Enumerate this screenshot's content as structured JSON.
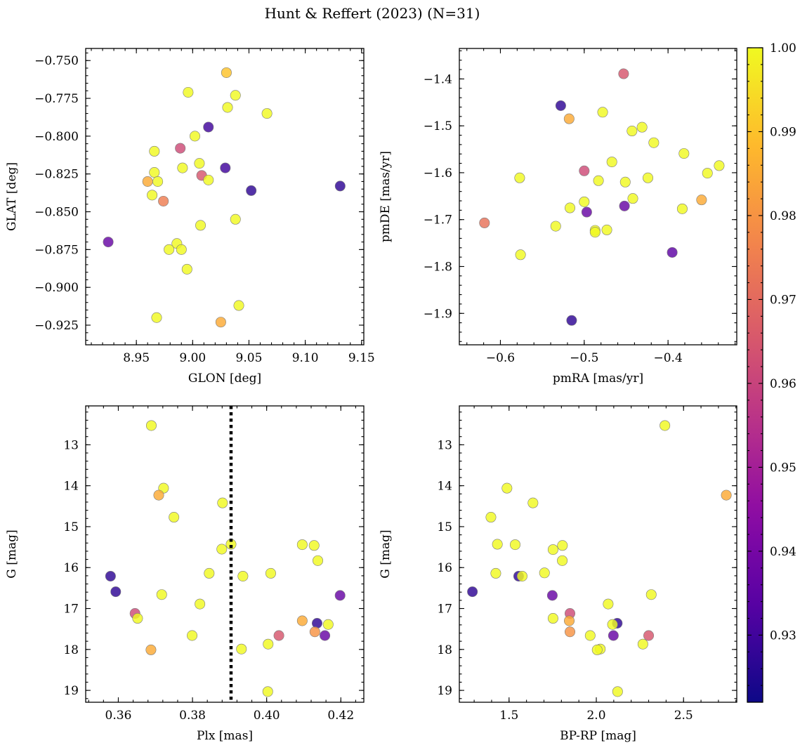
{
  "title": "Hunt & Reffert (2023) (N=31)",
  "chart_data": [
    {
      "type": "scatter",
      "panel": "top-left",
      "xlabel": "GLON [deg]",
      "ylabel": "GLAT [deg]",
      "xlim": [
        8.905,
        9.152
      ],
      "ylim": [
        -0.938,
        -0.742
      ],
      "xticks": [
        8.95,
        9.0,
        9.05,
        9.1,
        9.15
      ],
      "xtick_labels": [
        "8.95",
        "9.00",
        "9.05",
        "9.10",
        "9.15"
      ],
      "yticks": [
        -0.75,
        -0.775,
        -0.8,
        -0.825,
        -0.85,
        -0.875,
        -0.9,
        -0.925
      ],
      "ytick_labels": [
        "−0.750",
        "−0.775",
        "−0.800",
        "−0.825",
        "−0.850",
        "−0.875",
        "−0.900",
        "−0.925"
      ],
      "points": [
        {
          "x": 9.03,
          "y": -0.758,
          "c": 0.99
        },
        {
          "x": 8.996,
          "y": -0.771,
          "c": 1.0
        },
        {
          "x": 9.038,
          "y": -0.773,
          "c": 1.0
        },
        {
          "x": 9.031,
          "y": -0.781,
          "c": 1.0
        },
        {
          "x": 9.066,
          "y": -0.785,
          "c": 1.0
        },
        {
          "x": 9.014,
          "y": -0.794,
          "c": 0.93
        },
        {
          "x": 9.002,
          "y": -0.8,
          "c": 1.0
        },
        {
          "x": 8.989,
          "y": -0.808,
          "c": 0.962
        },
        {
          "x": 8.966,
          "y": -0.81,
          "c": 1.0
        },
        {
          "x": 9.006,
          "y": -0.818,
          "c": 1.0
        },
        {
          "x": 8.991,
          "y": -0.821,
          "c": 1.0
        },
        {
          "x": 9.029,
          "y": -0.821,
          "c": 0.93
        },
        {
          "x": 8.966,
          "y": -0.824,
          "c": 1.0
        },
        {
          "x": 9.008,
          "y": -0.826,
          "c": 0.965
        },
        {
          "x": 8.96,
          "y": -0.83,
          "c": 0.985
        },
        {
          "x": 8.969,
          "y": -0.83,
          "c": 1.0
        },
        {
          "x": 9.014,
          "y": -0.829,
          "c": 1.0
        },
        {
          "x": 9.052,
          "y": -0.836,
          "c": 0.927
        },
        {
          "x": 9.131,
          "y": -0.833,
          "c": 0.927
        },
        {
          "x": 8.964,
          "y": -0.839,
          "c": 1.0
        },
        {
          "x": 8.974,
          "y": -0.843,
          "c": 0.975
        },
        {
          "x": 9.038,
          "y": -0.855,
          "c": 1.0
        },
        {
          "x": 9.007,
          "y": -0.859,
          "c": 1.0
        },
        {
          "x": 8.925,
          "y": -0.87,
          "c": 0.937
        },
        {
          "x": 8.986,
          "y": -0.871,
          "c": 1.0
        },
        {
          "x": 8.979,
          "y": -0.875,
          "c": 1.0
        },
        {
          "x": 8.99,
          "y": -0.875,
          "c": 1.0
        },
        {
          "x": 8.995,
          "y": -0.888,
          "c": 1.0
        },
        {
          "x": 9.041,
          "y": -0.912,
          "c": 1.0
        },
        {
          "x": 8.968,
          "y": -0.92,
          "c": 1.0
        },
        {
          "x": 9.025,
          "y": -0.923,
          "c": 0.985
        }
      ]
    },
    {
      "type": "scatter",
      "panel": "top-right",
      "xlabel": "pmRA [mas/yr]",
      "ylabel": "pmDE [mas/yr]",
      "xlim": [
        -0.649,
        -0.318
      ],
      "ylim": [
        -1.967,
        -1.335
      ],
      "xticks": [
        -0.6,
        -0.5,
        -0.4
      ],
      "xtick_labels": [
        "−0.6",
        "−0.5",
        "−0.4"
      ],
      "yticks": [
        -1.4,
        -1.5,
        -1.6,
        -1.7,
        -1.8,
        -1.9
      ],
      "ytick_labels": [
        "−1.4",
        "−1.5",
        "−1.6",
        "−1.7",
        "−1.8",
        "−1.9"
      ],
      "points": [
        {
          "x": -0.453,
          "y": -1.389,
          "c": 0.965
        },
        {
          "x": -0.528,
          "y": -1.457,
          "c": 0.927
        },
        {
          "x": -0.518,
          "y": -1.485,
          "c": 0.985
        },
        {
          "x": -0.478,
          "y": -1.471,
          "c": 1.0
        },
        {
          "x": -0.443,
          "y": -1.511,
          "c": 1.0
        },
        {
          "x": -0.431,
          "y": -1.503,
          "c": 1.0
        },
        {
          "x": -0.417,
          "y": -1.536,
          "c": 1.0
        },
        {
          "x": -0.381,
          "y": -1.559,
          "c": 1.0
        },
        {
          "x": -0.339,
          "y": -1.585,
          "c": 1.0
        },
        {
          "x": -0.467,
          "y": -1.577,
          "c": 1.0
        },
        {
          "x": -0.5,
          "y": -1.596,
          "c": 0.962
        },
        {
          "x": -0.353,
          "y": -1.601,
          "c": 1.0
        },
        {
          "x": -0.424,
          "y": -1.611,
          "c": 1.0
        },
        {
          "x": -0.577,
          "y": -1.611,
          "c": 1.0
        },
        {
          "x": -0.483,
          "y": -1.617,
          "c": 1.0
        },
        {
          "x": -0.451,
          "y": -1.62,
          "c": 1.0
        },
        {
          "x": -0.442,
          "y": -1.655,
          "c": 1.0
        },
        {
          "x": -0.36,
          "y": -1.658,
          "c": 0.985
        },
        {
          "x": -0.5,
          "y": -1.662,
          "c": 1.0
        },
        {
          "x": -0.452,
          "y": -1.671,
          "c": 0.937
        },
        {
          "x": -0.517,
          "y": -1.675,
          "c": 1.0
        },
        {
          "x": -0.383,
          "y": -1.677,
          "c": 1.0
        },
        {
          "x": -0.497,
          "y": -1.684,
          "c": 0.937
        },
        {
          "x": -0.619,
          "y": -1.707,
          "c": 0.972
        },
        {
          "x": -0.534,
          "y": -1.714,
          "c": 1.0
        },
        {
          "x": -0.487,
          "y": -1.723,
          "c": 1.0
        },
        {
          "x": -0.473,
          "y": -1.722,
          "c": 1.0
        },
        {
          "x": -0.487,
          "y": -1.727,
          "c": 1.0
        },
        {
          "x": -0.395,
          "y": -1.77,
          "c": 0.935
        },
        {
          "x": -0.576,
          "y": -1.775,
          "c": 1.0
        },
        {
          "x": -0.515,
          "y": -1.915,
          "c": 0.927
        }
      ]
    },
    {
      "type": "scatter",
      "panel": "bottom-left",
      "xlabel": "Plx [mas]",
      "ylabel": "G [mag]",
      "xlim": [
        0.3512,
        0.4262
      ],
      "ylim": [
        19.29,
        12.05
      ],
      "y_inverted": true,
      "vline": 0.3904,
      "xticks": [
        0.36,
        0.38,
        0.4,
        0.42
      ],
      "xtick_labels": [
        "0.36",
        "0.38",
        "0.40",
        "0.42"
      ],
      "yticks": [
        13,
        14,
        15,
        16,
        17,
        18,
        19
      ],
      "ytick_labels": [
        "13",
        "14",
        "15",
        "16",
        "17",
        "18",
        "19"
      ],
      "points": [
        {
          "x": 0.3689,
          "y": 12.53,
          "c": 1.0
        },
        {
          "x": 0.3722,
          "y": 14.06,
          "c": 1.0
        },
        {
          "x": 0.3709,
          "y": 14.23,
          "c": 0.985
        },
        {
          "x": 0.3881,
          "y": 14.42,
          "c": 1.0
        },
        {
          "x": 0.375,
          "y": 14.77,
          "c": 1.0
        },
        {
          "x": 0.3879,
          "y": 15.55,
          "c": 1.0
        },
        {
          "x": 0.3904,
          "y": 15.43,
          "c": 1.0
        },
        {
          "x": 0.4096,
          "y": 15.44,
          "c": 1.0
        },
        {
          "x": 0.4128,
          "y": 15.46,
          "c": 1.0
        },
        {
          "x": 0.4138,
          "y": 15.83,
          "c": 1.0
        },
        {
          "x": 0.3845,
          "y": 16.14,
          "c": 1.0
        },
        {
          "x": 0.3936,
          "y": 16.21,
          "c": 1.0
        },
        {
          "x": 0.4011,
          "y": 16.14,
          "c": 1.0
        },
        {
          "x": 0.3579,
          "y": 16.21,
          "c": 0.927
        },
        {
          "x": 0.3593,
          "y": 16.59,
          "c": 0.927
        },
        {
          "x": 0.3717,
          "y": 16.66,
          "c": 1.0
        },
        {
          "x": 0.4198,
          "y": 16.68,
          "c": 0.937
        },
        {
          "x": 0.382,
          "y": 16.89,
          "c": 1.0
        },
        {
          "x": 0.3645,
          "y": 17.12,
          "c": 0.962
        },
        {
          "x": 0.3652,
          "y": 17.24,
          "c": 1.0
        },
        {
          "x": 0.4096,
          "y": 17.3,
          "c": 0.985
        },
        {
          "x": 0.4136,
          "y": 17.36,
          "c": 0.927
        },
        {
          "x": 0.4166,
          "y": 17.39,
          "c": 1.0
        },
        {
          "x": 0.413,
          "y": 17.57,
          "c": 0.98
        },
        {
          "x": 0.4157,
          "y": 17.66,
          "c": 0.937
        },
        {
          "x": 0.4033,
          "y": 17.66,
          "c": 0.965
        },
        {
          "x": 0.3799,
          "y": 17.66,
          "c": 1.0
        },
        {
          "x": 0.4004,
          "y": 17.87,
          "c": 1.0
        },
        {
          "x": 0.3932,
          "y": 17.99,
          "c": 1.0
        },
        {
          "x": 0.3688,
          "y": 18.01,
          "c": 0.985
        },
        {
          "x": 0.4003,
          "y": 19.03,
          "c": 1.0
        }
      ]
    },
    {
      "type": "scatter",
      "panel": "bottom-right",
      "xlabel": "BP-RP [mag]",
      "ylabel": "G [mag]",
      "xlim": [
        1.215,
        2.805
      ],
      "ylim": [
        19.29,
        12.05
      ],
      "y_inverted": true,
      "xticks": [
        1.5,
        2.0,
        2.5
      ],
      "xtick_labels": [
        "1.5",
        "2.0",
        "2.5"
      ],
      "yticks": [
        13,
        14,
        15,
        16,
        17,
        18,
        19
      ],
      "ytick_labels": [
        "13",
        "14",
        "15",
        "16",
        "17",
        "18",
        "19"
      ],
      "points": [
        {
          "x": 2.393,
          "y": 12.53,
          "c": 1.0
        },
        {
          "x": 1.488,
          "y": 14.06,
          "c": 1.0
        },
        {
          "x": 2.745,
          "y": 14.23,
          "c": 0.985
        },
        {
          "x": 1.637,
          "y": 14.42,
          "c": 1.0
        },
        {
          "x": 1.396,
          "y": 14.77,
          "c": 1.0
        },
        {
          "x": 1.433,
          "y": 15.43,
          "c": 1.0
        },
        {
          "x": 1.535,
          "y": 15.44,
          "c": 1.0
        },
        {
          "x": 1.806,
          "y": 15.46,
          "c": 1.0
        },
        {
          "x": 1.752,
          "y": 15.56,
          "c": 1.0
        },
        {
          "x": 1.805,
          "y": 15.83,
          "c": 1.0
        },
        {
          "x": 1.424,
          "y": 16.14,
          "c": 1.0
        },
        {
          "x": 1.703,
          "y": 16.13,
          "c": 1.0
        },
        {
          "x": 1.555,
          "y": 16.21,
          "c": 0.927
        },
        {
          "x": 1.575,
          "y": 16.21,
          "c": 1.0
        },
        {
          "x": 1.29,
          "y": 16.59,
          "c": 0.927
        },
        {
          "x": 1.748,
          "y": 16.68,
          "c": 0.937
        },
        {
          "x": 2.315,
          "y": 16.66,
          "c": 1.0
        },
        {
          "x": 2.068,
          "y": 16.89,
          "c": 1.0
        },
        {
          "x": 1.849,
          "y": 17.12,
          "c": 0.962
        },
        {
          "x": 1.752,
          "y": 17.24,
          "c": 1.0
        },
        {
          "x": 1.845,
          "y": 17.3,
          "c": 0.985
        },
        {
          "x": 2.12,
          "y": 17.36,
          "c": 0.927
        },
        {
          "x": 2.093,
          "y": 17.39,
          "c": 1.0
        },
        {
          "x": 1.849,
          "y": 17.57,
          "c": 0.98
        },
        {
          "x": 2.098,
          "y": 17.66,
          "c": 0.937
        },
        {
          "x": 2.3,
          "y": 17.66,
          "c": 0.965
        },
        {
          "x": 1.965,
          "y": 17.66,
          "c": 1.0
        },
        {
          "x": 2.267,
          "y": 17.87,
          "c": 1.0
        },
        {
          "x": 2.023,
          "y": 17.99,
          "c": 1.0
        },
        {
          "x": 2.005,
          "y": 18.01,
          "c": 1.0
        },
        {
          "x": 2.122,
          "y": 19.03,
          "c": 1.0
        }
      ]
    },
    {
      "type": "colorbar",
      "colormap": "plasma",
      "clim": [
        0.922,
        1.0
      ],
      "ticks": [
        1.0,
        0.99,
        0.98,
        0.97,
        0.96,
        0.95,
        0.94,
        0.93
      ],
      "tick_labels": [
        "1.00",
        "0.99",
        "0.98",
        "0.97",
        "0.96",
        "0.95",
        "0.94",
        "0.93"
      ]
    }
  ]
}
